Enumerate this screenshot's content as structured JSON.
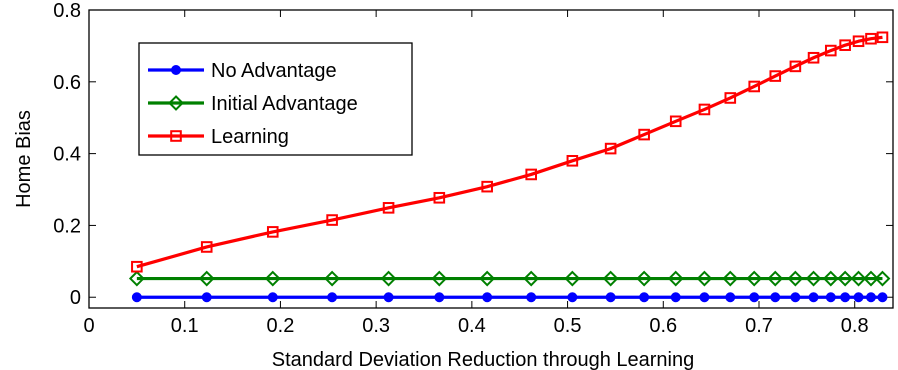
{
  "chart_data": {
    "type": "line",
    "title": "",
    "xlabel": "Standard Deviation Reduction through Learning",
    "ylabel": "Home Bias",
    "xlim": [
      0,
      0.84
    ],
    "ylim": [
      -0.03,
      0.8
    ],
    "xticks": [
      0,
      0.1,
      0.2,
      0.3,
      0.4,
      0.5,
      0.6,
      0.7,
      0.8
    ],
    "xtick_labels": [
      "0",
      "0.1",
      "0.2",
      "0.3",
      "0.4",
      "0.5",
      "0.6",
      "0.7",
      "0.8"
    ],
    "yticks": [
      0,
      0.2,
      0.4,
      0.6,
      0.8
    ],
    "ytick_labels": [
      "0",
      "0.2",
      "0.4",
      "0.6",
      "0.8"
    ],
    "grid": false,
    "legend_position": "top-left",
    "x": [
      0.05,
      0.123,
      0.192,
      0.254,
      0.313,
      0.366,
      0.416,
      0.462,
      0.505,
      0.545,
      0.58,
      0.613,
      0.643,
      0.67,
      0.695,
      0.717,
      0.738,
      0.757,
      0.775,
      0.79,
      0.804,
      0.817,
      0.829
    ],
    "series": [
      {
        "name": "No Advantage",
        "color": "#0000ff",
        "marker": "circle",
        "values": [
          0,
          0,
          0,
          0,
          0,
          0,
          0,
          0,
          0,
          0,
          0,
          0,
          0,
          0,
          0,
          0,
          0,
          0,
          0,
          0,
          0,
          0,
          0
        ]
      },
      {
        "name": "Initial Advantage",
        "color": "#008000",
        "marker": "diamond",
        "values": [
          0.052,
          0.052,
          0.052,
          0.052,
          0.052,
          0.052,
          0.052,
          0.052,
          0.052,
          0.052,
          0.052,
          0.052,
          0.052,
          0.052,
          0.052,
          0.052,
          0.052,
          0.052,
          0.052,
          0.052,
          0.052,
          0.052,
          0.052
        ]
      },
      {
        "name": "Learning",
        "color": "#ff0000",
        "marker": "square",
        "values": [
          0.085,
          0.14,
          0.182,
          0.215,
          0.249,
          0.277,
          0.308,
          0.342,
          0.38,
          0.414,
          0.453,
          0.49,
          0.523,
          0.555,
          0.587,
          0.616,
          0.643,
          0.667,
          0.687,
          0.702,
          0.713,
          0.72,
          0.724
        ]
      }
    ]
  }
}
